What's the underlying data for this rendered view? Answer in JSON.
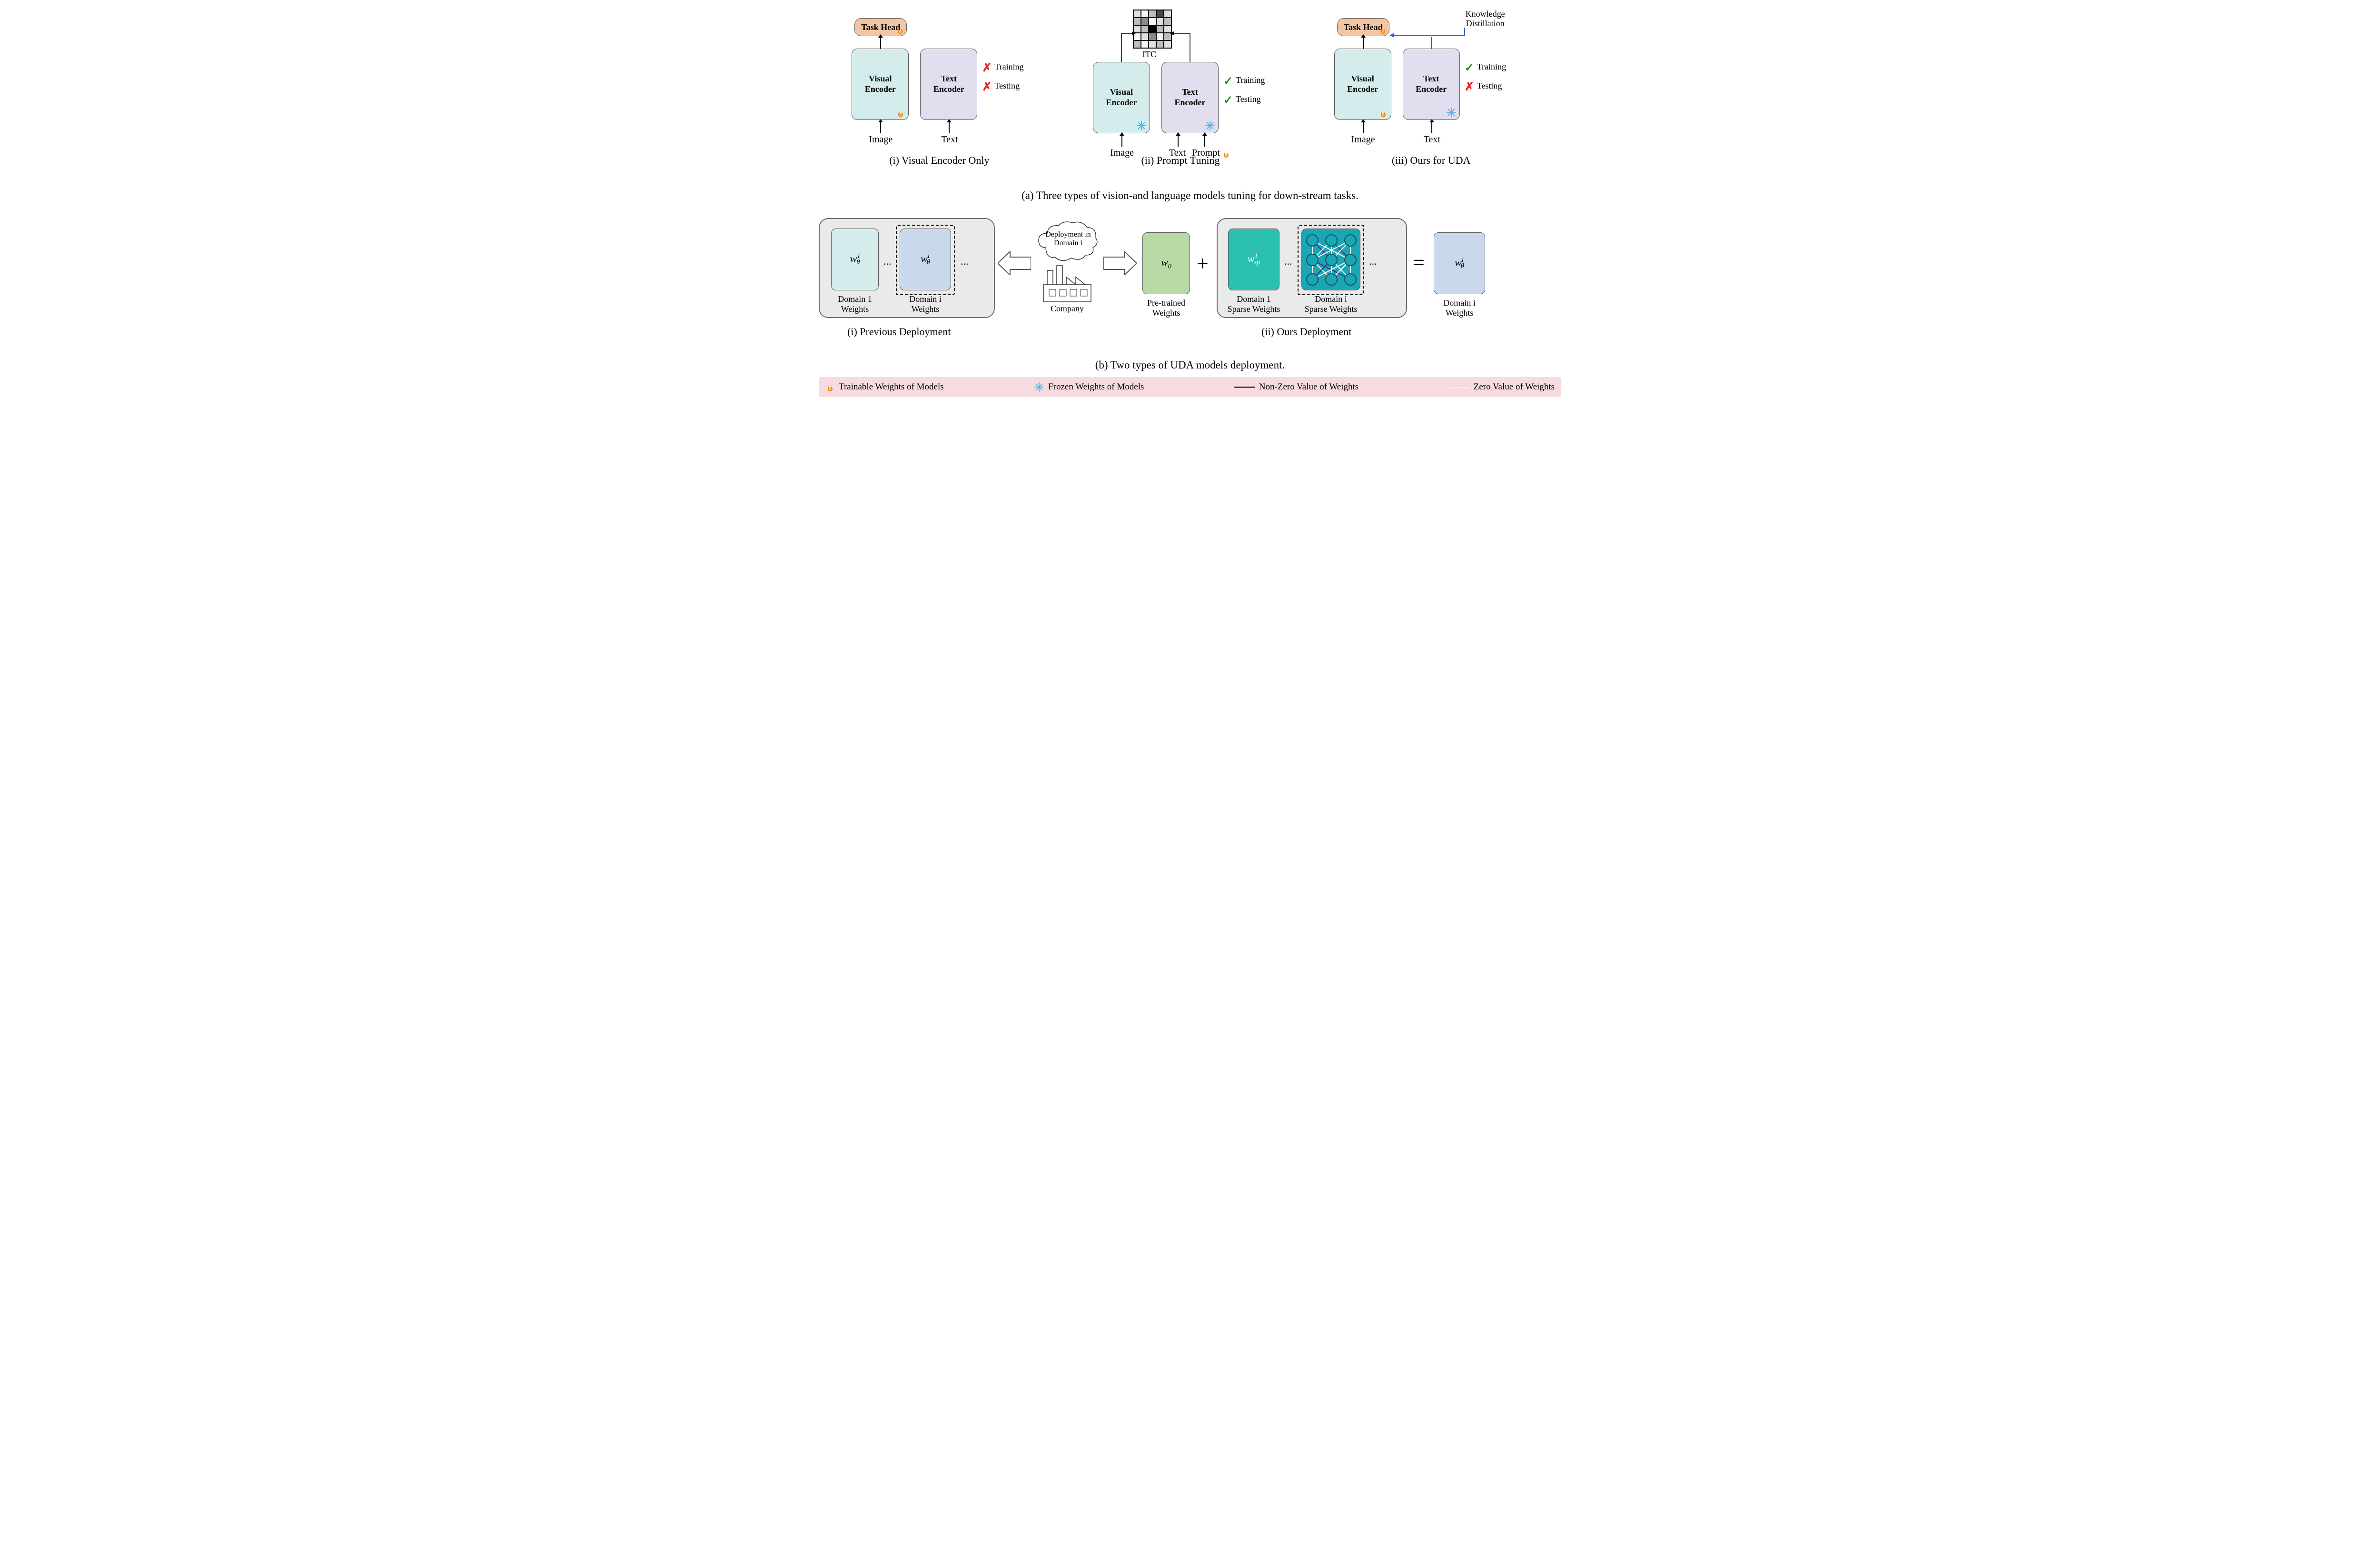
{
  "section_a": {
    "panels": [
      {
        "id": "visual-only",
        "caption": "(i) Visual Encoder Only",
        "task_head": "Task Head",
        "visual": "Visual\nEncoder",
        "text": "Text\nEncoder",
        "input_visual": "Image",
        "input_text": "Text",
        "visual_state": "fire",
        "text_state": "none",
        "indicators": [
          {
            "mark": "cross",
            "label": "Training"
          },
          {
            "mark": "cross",
            "label": "Testing"
          }
        ]
      },
      {
        "id": "prompt-tuning",
        "caption": "(ii) Prompt Tuning",
        "itc_label": "ITC",
        "visual": "Visual\nEncoder",
        "text": "Text\nEncoder",
        "input_visual": "Image",
        "input_text": "Text",
        "input_prompt": "Prompt",
        "visual_state": "snow",
        "text_state": "snow",
        "indicators": [
          {
            "mark": "check",
            "label": "Training"
          },
          {
            "mark": "check",
            "label": "Testing"
          }
        ]
      },
      {
        "id": "ours-uda",
        "caption": "(iii) Ours for UDA",
        "task_head": "Task Head",
        "kd_label": "Knowledge\nDistillation",
        "visual": "Visual\nEncoder",
        "text": "Text\nEncoder",
        "input_visual": "Image",
        "input_text": "Text",
        "visual_state": "fire",
        "text_state": "snow",
        "indicators": [
          {
            "mark": "check",
            "label": "Training"
          },
          {
            "mark": "cross",
            "label": "Testing"
          }
        ]
      }
    ],
    "caption": "(a) Three types of vision-and language models tuning for down-stream tasks."
  },
  "section_b": {
    "left_caption": "(i) Previous Deployment",
    "right_caption": "(ii) Ours Deployment",
    "domain1_w": "Domain 1\nWeights",
    "domaini_w": "Domain i\nWeights",
    "pretrained": "Pre-trained\nWeights",
    "domain1_sp": "Domain 1\nSparse Weights",
    "domaini_sp": "Domain i\nSparse Weights",
    "result_w": "Domain i\nWeights",
    "company": "Company",
    "cloud_text": "Deployment in\nDomain i",
    "caption": "(b) Two types of UDA models deployment."
  },
  "legend": {
    "fire": "Trainable Weights of Models",
    "snow": "Frozen Weights of Models",
    "nonzero": "Non-Zero Value of Weights",
    "zero": "Zero Value of Weights"
  },
  "colors": {
    "visual_bg": "#d4eceb",
    "text_bg": "#e1def0",
    "task_head_bg": "#f2c6a5",
    "panel_gray": "#eaeaea",
    "w1_bg": "#d4eceb",
    "wi_bg": "#c9d8ea",
    "w0_bg": "#b8dba6",
    "sp1_bg": "#2cc0b0",
    "sparse_bg": "#1ba6b3",
    "result_bg": "#c9d8ea",
    "legend_bg": "#f6dcdf",
    "nonzero_line": "#4b2e83",
    "zero_line": "#ffffff",
    "kd_arrow": "#2e5fc9"
  },
  "itc_pattern": [
    [
      1,
      0,
      2,
      4,
      1
    ],
    [
      2,
      3,
      0,
      1,
      2
    ],
    [
      1,
      2,
      5,
      2,
      1
    ],
    [
      0,
      1,
      3,
      0,
      2
    ],
    [
      2,
      0,
      1,
      2,
      1
    ]
  ]
}
